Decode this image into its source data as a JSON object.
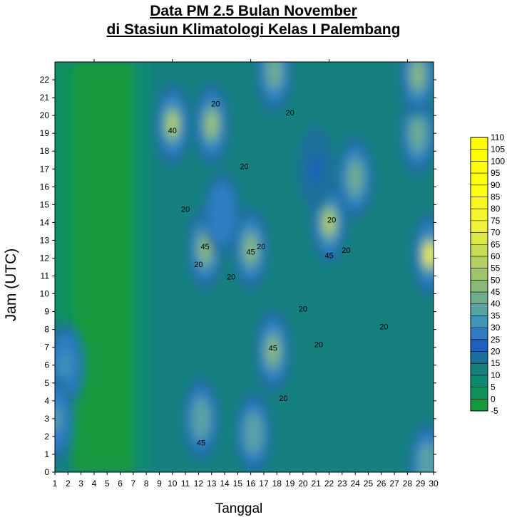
{
  "chart_data": {
    "type": "heatmap",
    "title": [
      "Data PM 2.5 Bulan November",
      "di Stasiun Klimatologi Kelas I Palembang"
    ],
    "xlabel": "Tanggal",
    "ylabel": "Jam (UTC)",
    "x_ticks": [
      1,
      2,
      3,
      4,
      5,
      6,
      7,
      8,
      9,
      10,
      11,
      12,
      13,
      14,
      15,
      16,
      17,
      18,
      19,
      20,
      21,
      22,
      23,
      24,
      25,
      26,
      27,
      28,
      29,
      30
    ],
    "y_ticks": [
      0,
      1,
      2,
      3,
      4,
      5,
      6,
      7,
      8,
      9,
      10,
      11,
      12,
      13,
      14,
      15,
      16,
      17,
      18,
      19,
      20,
      21,
      22
    ],
    "xlim": [
      1,
      30
    ],
    "ylim": [
      0,
      23
    ],
    "colorbar": {
      "levels": [
        -5,
        0,
        5,
        10,
        15,
        20,
        25,
        30,
        35,
        40,
        45,
        50,
        55,
        60,
        65,
        70,
        75,
        80,
        85,
        90,
        95,
        100,
        105,
        110
      ],
      "colors": [
        "#179a3c",
        "#10915c",
        "#0e8a72",
        "#16807f",
        "#1a6f9c",
        "#1f5fc0",
        "#2f7ec4",
        "#3f95b6",
        "#5aa3a4",
        "#71ae8d",
        "#8ab97a",
        "#9ec46d",
        "#b3d062",
        "#c8dc56",
        "#dce84a",
        "#eff23a",
        "#f7f52c",
        "#fbf71e",
        "#ffff12",
        "#ffff08",
        "#ffff00",
        "#ffff00",
        "#ffff00"
      ],
      "labels": [
        "-5",
        "0",
        "5",
        "10",
        "15",
        "20",
        "25",
        "30",
        "35",
        "40",
        "45",
        "50",
        "55",
        "60",
        "65",
        "70",
        "75",
        "80",
        "85",
        "90",
        "95",
        "100",
        "105",
        "110"
      ]
    },
    "contour_labels": [
      "20",
      "20",
      "20",
      "20",
      "20",
      "20",
      "20",
      "20",
      "20",
      "20",
      "20",
      "20",
      "20",
      "45",
      "45",
      "45",
      "45",
      "45",
      "40"
    ],
    "grid": false,
    "legend": "right",
    "hotspots": [
      {
        "x": 10,
        "y": 19.5,
        "value": 60
      },
      {
        "x": 13,
        "y": 19.5,
        "value": 55
      },
      {
        "x": 12.5,
        "y": 12.5,
        "value": 50
      },
      {
        "x": 16,
        "y": 12.5,
        "value": 50
      },
      {
        "x": 17.7,
        "y": 6.8,
        "value": 48
      },
      {
        "x": 22,
        "y": 14,
        "value": 60
      },
      {
        "x": 29.7,
        "y": 12.2,
        "value": 75
      },
      {
        "x": 28.8,
        "y": 19,
        "value": 45
      },
      {
        "x": 28.8,
        "y": 22.3,
        "value": 50
      },
      {
        "x": 17.8,
        "y": 22.5,
        "value": 45
      },
      {
        "x": 24,
        "y": 16.5,
        "value": 42
      },
      {
        "x": 12.2,
        "y": 3,
        "value": 40
      },
      {
        "x": 16.2,
        "y": 2.2,
        "value": 40
      },
      {
        "x": 1.8,
        "y": 6,
        "value": 35
      },
      {
        "x": 1,
        "y": 3,
        "value": 38
      },
      {
        "x": 29.5,
        "y": 0.5,
        "value": 40
      },
      {
        "x": 13.8,
        "y": 14.5,
        "value": 30
      },
      {
        "x": 21,
        "y": 17,
        "value": 25
      }
    ]
  }
}
